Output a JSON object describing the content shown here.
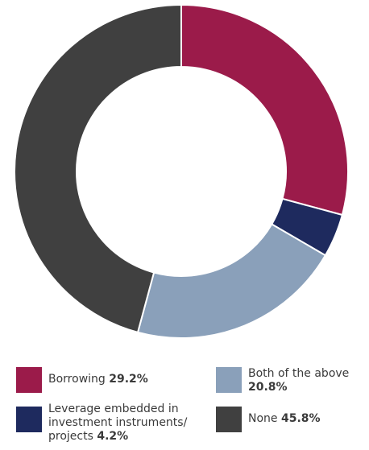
{
  "chart_data": {
    "type": "pie",
    "donut": true,
    "slices": [
      {
        "label": "Borrowing",
        "value": 29.2,
        "display": "29.2%",
        "color": "#9b1b4a"
      },
      {
        "label": "Leverage embedded in investment instruments/ projects",
        "value": 4.2,
        "display": "4.2%",
        "color": "#1e2a5e"
      },
      {
        "label": "Both of the above",
        "value": 20.8,
        "display": "20.8%",
        "color": "#8aa0ba"
      },
      {
        "label": "None",
        "value": 45.8,
        "display": "45.8%",
        "color": "#404040"
      }
    ],
    "legend": [
      {
        "label": "Borrowing",
        "value": "29.2%",
        "color": "#9b1b4a"
      },
      {
        "label": "Leverage embedded in investment instruments/ projects",
        "value": "4.2%",
        "color": "#1e2a5e"
      },
      {
        "label": "Both of the above",
        "value": "20.8%",
        "color": "#8aa0ba"
      },
      {
        "label": "None",
        "value": "45.8%",
        "color": "#404040"
      }
    ],
    "legend_placement": "bottom"
  }
}
